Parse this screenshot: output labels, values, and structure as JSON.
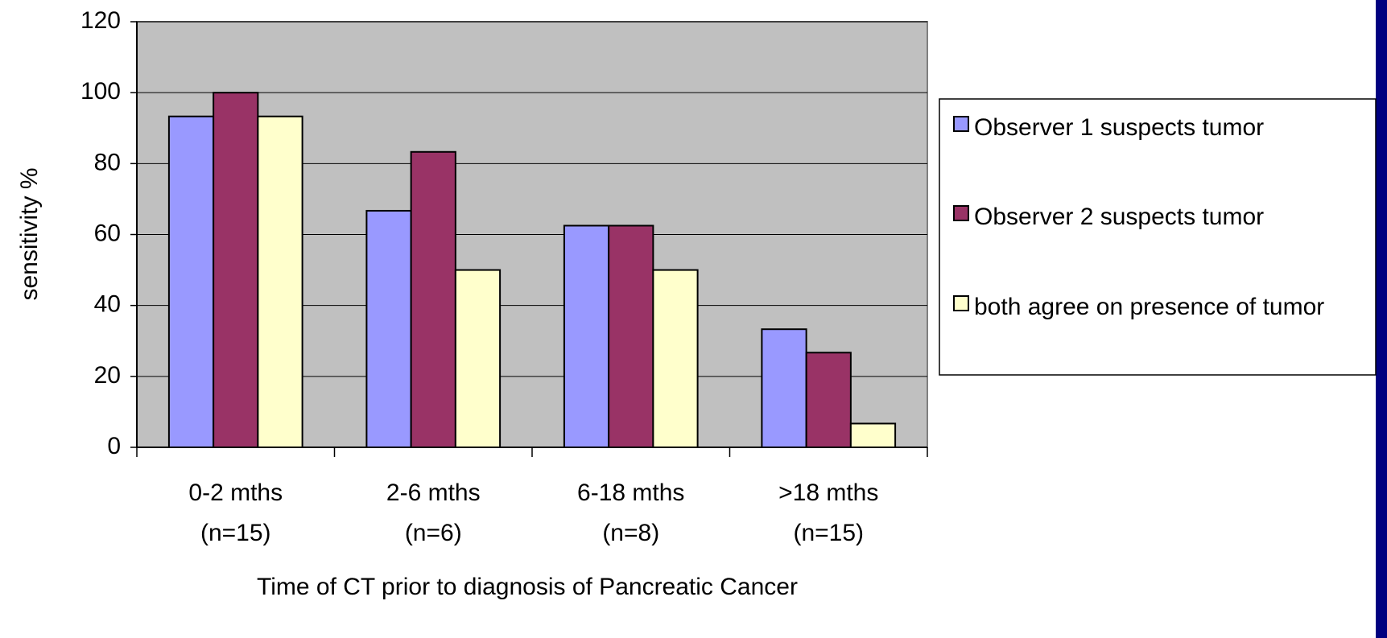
{
  "chart_data": {
    "type": "bar",
    "x_label": "Time of CT prior to diagnosis of Pancreatic Cancer",
    "y_label": "sensitivity %",
    "categories": [
      "0-2 mths (n=15)",
      "2-6 mths (n=6)",
      "6-18 mths (n=8)",
      ">18 mths (n=15)"
    ],
    "series": [
      {
        "name": "Observer 1 suspects tumor",
        "color": "#9999ff",
        "values": [
          93.3,
          66.7,
          62.5,
          33.3
        ]
      },
      {
        "name": "Observer 2 suspects tumor",
        "color": "#993366",
        "values": [
          100,
          83.3,
          62.5,
          26.7
        ]
      },
      {
        "name": "both agree on presence of tumor",
        "color": "#ffffcc",
        "values": [
          93.3,
          50,
          50,
          6.7
        ]
      }
    ],
    "ylim": [
      0,
      120
    ],
    "yticks": [
      0,
      20,
      40,
      60,
      80,
      100,
      120
    ],
    "grid": true,
    "legend": "right"
  }
}
